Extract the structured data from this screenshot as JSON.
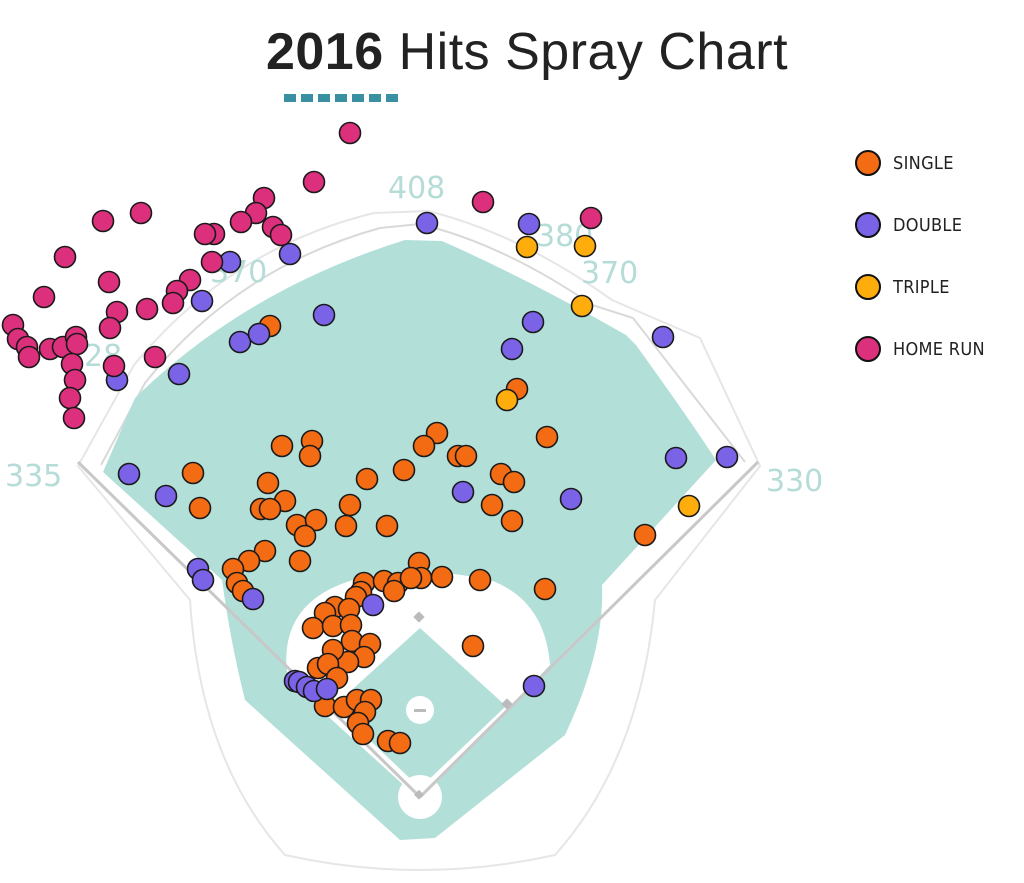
{
  "chart_data": {
    "type": "scatter",
    "title_year": "2016",
    "title_rest": "Hits Spray Chart",
    "colors": {
      "single": "#f36b12",
      "double": "#7b63e8",
      "triple": "#ffad0d",
      "home_run": "#dc2f7c",
      "field": "#b3dfd9",
      "distance": "#b6dcd8"
    },
    "legend": [
      {
        "key": "single",
        "label": "SINGLE"
      },
      {
        "key": "double",
        "label": "DOUBLE"
      },
      {
        "key": "triple",
        "label": "TRIPLE"
      },
      {
        "key": "home_run",
        "label": "HOME RUN"
      }
    ],
    "distance_markers": {
      "left_line": "335",
      "left_field": "28",
      "left_center": "370",
      "center": "408",
      "right_center": "380",
      "right_field": "370",
      "right_line": "330"
    },
    "series": [
      {
        "name": "SINGLE",
        "key": "single",
        "points": [
          [
            270,
            326
          ],
          [
            282,
            446
          ],
          [
            312,
            441
          ],
          [
            310,
            456
          ],
          [
            437,
            433
          ],
          [
            424,
            446
          ],
          [
            458,
            456
          ],
          [
            466,
            456
          ],
          [
            404,
            470
          ],
          [
            547,
            437
          ],
          [
            517,
            389
          ],
          [
            193,
            473
          ],
          [
            200,
            508
          ],
          [
            268,
            483
          ],
          [
            285,
            501
          ],
          [
            261,
            509
          ],
          [
            270,
            509
          ],
          [
            297,
            525
          ],
          [
            316,
            520
          ],
          [
            305,
            536
          ],
          [
            350,
            505
          ],
          [
            367,
            479
          ],
          [
            346,
            526
          ],
          [
            387,
            526
          ],
          [
            501,
            474
          ],
          [
            514,
            482
          ],
          [
            492,
            505
          ],
          [
            512,
            521
          ],
          [
            645,
            535
          ],
          [
            265,
            551
          ],
          [
            249,
            561
          ],
          [
            233,
            569
          ],
          [
            237,
            583
          ],
          [
            243,
            591
          ],
          [
            300,
            561
          ],
          [
            419,
            563
          ],
          [
            421,
            578
          ],
          [
            442,
            577
          ],
          [
            480,
            580
          ],
          [
            545,
            589
          ],
          [
            364,
            583
          ],
          [
            384,
            581
          ],
          [
            398,
            583
          ],
          [
            411,
            578
          ],
          [
            394,
            591
          ],
          [
            361,
            592
          ],
          [
            356,
            597
          ],
          [
            335,
            607
          ],
          [
            349,
            609
          ],
          [
            325,
            613
          ],
          [
            313,
            628
          ],
          [
            333,
            626
          ],
          [
            351,
            625
          ],
          [
            352,
            641
          ],
          [
            370,
            644
          ],
          [
            364,
            657
          ],
          [
            348,
            662
          ],
          [
            333,
            650
          ],
          [
            318,
            668
          ],
          [
            328,
            664
          ],
          [
            337,
            678
          ],
          [
            325,
            706
          ],
          [
            344,
            707
          ],
          [
            357,
            700
          ],
          [
            371,
            700
          ],
          [
            365,
            712
          ],
          [
            358,
            723
          ],
          [
            363,
            734
          ],
          [
            388,
            741
          ],
          [
            400,
            743
          ],
          [
            473,
            646
          ]
        ]
      },
      {
        "name": "DOUBLE",
        "key": "double",
        "points": [
          [
            427,
            223
          ],
          [
            529,
            224
          ],
          [
            230,
            262
          ],
          [
            290,
            254
          ],
          [
            202,
            301
          ],
          [
            240,
            342
          ],
          [
            259,
            334
          ],
          [
            324,
            315
          ],
          [
            179,
            374
          ],
          [
            117,
            380
          ],
          [
            533,
            322
          ],
          [
            512,
            349
          ],
          [
            663,
            337
          ],
          [
            129,
            474
          ],
          [
            166,
            496
          ],
          [
            463,
            492
          ],
          [
            571,
            499
          ],
          [
            676,
            458
          ],
          [
            727,
            457
          ],
          [
            198,
            569
          ],
          [
            203,
            580
          ],
          [
            253,
            599
          ],
          [
            373,
            605
          ],
          [
            534,
            686
          ],
          [
            295,
            681
          ],
          [
            299,
            682
          ],
          [
            307,
            687
          ],
          [
            314,
            691
          ],
          [
            327,
            689
          ]
        ]
      },
      {
        "name": "TRIPLE",
        "key": "triple",
        "points": [
          [
            527,
            247
          ],
          [
            585,
            246
          ],
          [
            582,
            306
          ],
          [
            507,
            400
          ],
          [
            689,
            506
          ]
        ]
      },
      {
        "name": "HOME RUN",
        "key": "home_run",
        "points": [
          [
            350,
            133
          ],
          [
            314,
            182
          ],
          [
            483,
            202
          ],
          [
            591,
            218
          ],
          [
            264,
            198
          ],
          [
            256,
            213
          ],
          [
            241,
            222
          ],
          [
            273,
            227
          ],
          [
            281,
            235
          ],
          [
            214,
            234
          ],
          [
            205,
            234
          ],
          [
            141,
            213
          ],
          [
            103,
            221
          ],
          [
            65,
            257
          ],
          [
            212,
            262
          ],
          [
            109,
            282
          ],
          [
            190,
            280
          ],
          [
            177,
            291
          ],
          [
            173,
            303
          ],
          [
            147,
            309
          ],
          [
            117,
            312
          ],
          [
            44,
            297
          ],
          [
            13,
            325
          ],
          [
            18,
            339
          ],
          [
            27,
            347
          ],
          [
            29,
            357
          ],
          [
            50,
            349
          ],
          [
            63,
            347
          ],
          [
            76,
            337
          ],
          [
            77,
            344
          ],
          [
            110,
            328
          ],
          [
            155,
            357
          ],
          [
            114,
            366
          ],
          [
            72,
            364
          ],
          [
            75,
            380
          ],
          [
            70,
            398
          ],
          [
            74,
            418
          ]
        ]
      }
    ]
  }
}
